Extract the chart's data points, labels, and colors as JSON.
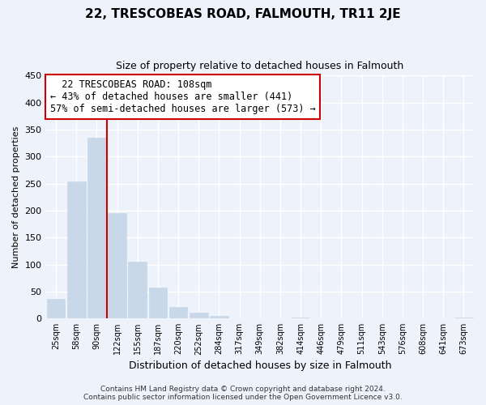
{
  "title": "22, TRESCOBEAS ROAD, FALMOUTH, TR11 2JE",
  "subtitle": "Size of property relative to detached houses in Falmouth",
  "xlabel": "Distribution of detached houses by size in Falmouth",
  "ylabel": "Number of detached properties",
  "bar_labels": [
    "25sqm",
    "58sqm",
    "90sqm",
    "122sqm",
    "155sqm",
    "187sqm",
    "220sqm",
    "252sqm",
    "284sqm",
    "317sqm",
    "349sqm",
    "382sqm",
    "414sqm",
    "446sqm",
    "479sqm",
    "511sqm",
    "543sqm",
    "576sqm",
    "608sqm",
    "641sqm",
    "673sqm"
  ],
  "bar_values": [
    36,
    254,
    335,
    196,
    106,
    57,
    21,
    11,
    5,
    1,
    0,
    0,
    2,
    0,
    0,
    0,
    0,
    0,
    0,
    0,
    2
  ],
  "bar_color": "#c8d8e8",
  "vline_x": 2.5,
  "vline_color": "#cc0000",
  "annotation_lines": [
    "  22 TRESCOBEAS ROAD: 108sqm",
    "← 43% of detached houses are smaller (441)",
    "57% of semi-detached houses are larger (573) →"
  ],
  "annotation_box_color": "#ffffff",
  "annotation_box_edge": "#cc0000",
  "ylim": [
    0,
    450
  ],
  "yticks": [
    0,
    50,
    100,
    150,
    200,
    250,
    300,
    350,
    400,
    450
  ],
  "footer_line1": "Contains HM Land Registry data © Crown copyright and database right 2024.",
  "footer_line2": "Contains public sector information licensed under the Open Government Licence v3.0.",
  "bg_color": "#eef2fa",
  "title_fontsize": 11,
  "subtitle_fontsize": 9,
  "ylabel_fontsize": 8,
  "xlabel_fontsize": 9,
  "tick_fontsize": 7,
  "annotation_fontsize": 8.5,
  "footer_fontsize": 6.5
}
